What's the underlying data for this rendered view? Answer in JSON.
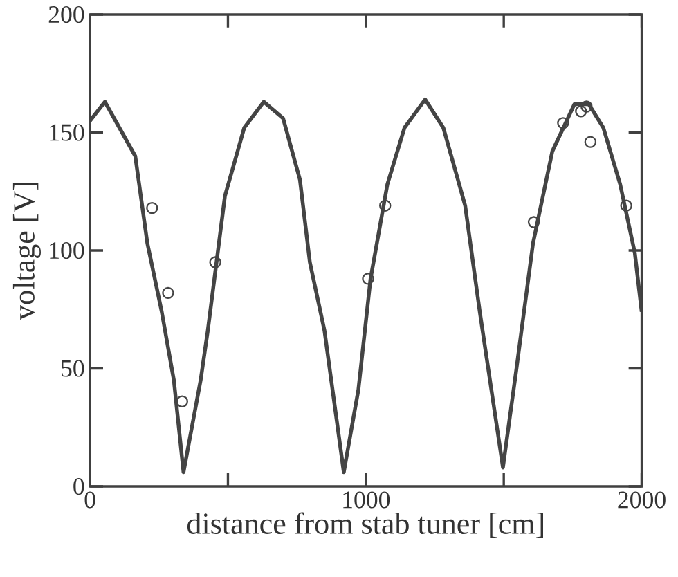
{
  "chart_data": {
    "type": "line",
    "xlabel": "distance from stab tuner [cm]",
    "ylabel": "voltage [V]",
    "xlim": [
      0,
      2000
    ],
    "ylim": [
      0,
      200
    ],
    "xticks": [
      0,
      {
        "value": 500,
        "label": null
      },
      1000,
      {
        "value": 1500,
        "label": null
      },
      2000
    ],
    "yticks": [
      0,
      50,
      100,
      150,
      200
    ],
    "series": [
      {
        "color": "#444444",
        "marker": "none",
        "line_style": "solid",
        "x": [
          0,
          54,
          164,
          208,
          260,
          304,
          339,
          401,
          427,
          489,
          559,
          630,
          700,
          761,
          797,
          850,
          920,
          973,
          1017,
          1078,
          1140,
          1215,
          1281,
          1360,
          1413,
          1497,
          1545,
          1606,
          1676,
          1756,
          1808,
          1861,
          1922,
          1975,
          2000
        ],
        "values": [
          155,
          163,
          140,
          103,
          74,
          45,
          6,
          45,
          66,
          123,
          152,
          163,
          156,
          130,
          95,
          66,
          6,
          41,
          88,
          128,
          152,
          164,
          152,
          119,
          74,
          8,
          49,
          103,
          142,
          162,
          162,
          152,
          128,
          99,
          74
        ]
      },
      {
        "type": "scatter",
        "color": "#444444",
        "marker": "circle",
        "x": [
          225,
          283,
          334,
          454,
          1008,
          1070,
          1609,
          1715,
          1780,
          1800,
          1814,
          1944
        ],
        "values": [
          118,
          82,
          36,
          95,
          88,
          119,
          112,
          154,
          159,
          161,
          146,
          119
        ]
      }
    ]
  }
}
